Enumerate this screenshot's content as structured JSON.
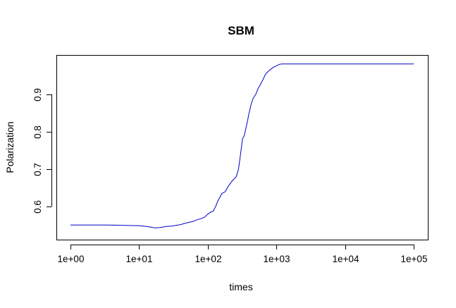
{
  "chart_data": {
    "type": "line",
    "title": "SBM",
    "xlabel": "times",
    "ylabel": "Polarization",
    "x_scale": "log",
    "xlim": [
      1,
      100000
    ],
    "ylim": [
      0.525,
      0.99
    ],
    "x_ticks": [
      {
        "value": 1,
        "label": "1e+00"
      },
      {
        "value": 10,
        "label": "1e+01"
      },
      {
        "value": 100,
        "label": "1e+02"
      },
      {
        "value": 1000,
        "label": "1e+03"
      },
      {
        "value": 10000,
        "label": "1e+04"
      },
      {
        "value": 100000,
        "label": "1e+05"
      }
    ],
    "y_ticks": [
      {
        "value": 0.6,
        "label": "0.6"
      },
      {
        "value": 0.7,
        "label": "0.7"
      },
      {
        "value": 0.8,
        "label": "0.8"
      },
      {
        "value": 0.9,
        "label": "0.9"
      }
    ],
    "grid": false,
    "legend": "none",
    "series": [
      {
        "color": "#0000cc",
        "x": [
          1,
          3.5,
          10,
          14,
          17,
          20,
          25,
          30,
          40,
          50,
          60,
          70,
          80,
          90,
          100,
          110,
          120,
          130,
          140,
          150,
          160,
          180,
          200,
          230,
          260,
          280,
          300,
          320,
          340,
          360,
          380,
          400,
          430,
          460,
          500,
          540,
          580,
          620,
          660,
          700,
          800,
          900,
          1000,
          1100,
          1200,
          2000,
          5000,
          10000,
          50000,
          100000
        ],
        "y": [
          0.551,
          0.551,
          0.549,
          0.546,
          0.543,
          0.544,
          0.547,
          0.548,
          0.552,
          0.557,
          0.56,
          0.565,
          0.568,
          0.572,
          0.58,
          0.585,
          0.588,
          0.6,
          0.615,
          0.625,
          0.635,
          0.64,
          0.655,
          0.67,
          0.68,
          0.7,
          0.74,
          0.78,
          0.79,
          0.81,
          0.83,
          0.85,
          0.875,
          0.89,
          0.9,
          0.915,
          0.925,
          0.935,
          0.945,
          0.955,
          0.965,
          0.972,
          0.976,
          0.98,
          0.981,
          0.981,
          0.981,
          0.981,
          0.981,
          0.981
        ]
      }
    ]
  }
}
